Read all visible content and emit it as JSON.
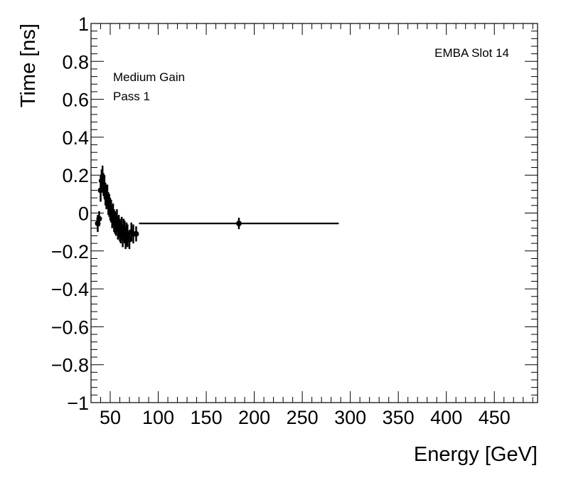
{
  "chart_data": {
    "type": "scatter",
    "title": "",
    "xlabel": "Energy [GeV]",
    "ylabel": "Time [ns]",
    "xlim": [
      30,
      495
    ],
    "ylim": [
      -1,
      1
    ],
    "x_ticks": [
      50,
      100,
      150,
      200,
      250,
      300,
      350,
      400,
      450
    ],
    "x_tick_labels": [
      "50",
      "100",
      "150",
      "200",
      "250",
      "300",
      "350",
      "400",
      "450"
    ],
    "y_ticks": [
      -1,
      -0.8,
      -0.6,
      -0.4,
      -0.2,
      0,
      0.2,
      0.4,
      0.6,
      0.8,
      1
    ],
    "y_tick_labels": [
      "−1",
      "−0.8",
      "−0.6",
      "−0.4",
      "−0.2",
      "0",
      "0.2",
      "0.4",
      "0.6",
      "0.8",
      "1"
    ],
    "grid": false,
    "annotations": [
      "EMBA Slot 14",
      "Medium Gain",
      "Pass 1"
    ],
    "points": [
      {
        "x": 37.0,
        "y": -0.055,
        "err": 0.045,
        "xerr": 2
      },
      {
        "x": 38.5,
        "y": -0.03,
        "err": 0.04,
        "xerr": 2
      },
      {
        "x": 40.0,
        "y": 0.12,
        "err": 0.06,
        "xerr": 1
      },
      {
        "x": 41.0,
        "y": 0.17,
        "err": 0.06,
        "xerr": 1
      },
      {
        "x": 42.0,
        "y": 0.19,
        "err": 0.06,
        "xerr": 1
      },
      {
        "x": 43.0,
        "y": 0.15,
        "err": 0.06,
        "xerr": 1
      },
      {
        "x": 44.0,
        "y": 0.14,
        "err": 0.06,
        "xerr": 1
      },
      {
        "x": 45.0,
        "y": 0.1,
        "err": 0.06,
        "xerr": 1
      },
      {
        "x": 46.0,
        "y": 0.08,
        "err": 0.06,
        "xerr": 1
      },
      {
        "x": 47.0,
        "y": 0.09,
        "err": 0.06,
        "xerr": 1
      },
      {
        "x": 48.0,
        "y": 0.05,
        "err": 0.06,
        "xerr": 1
      },
      {
        "x": 49.0,
        "y": 0.04,
        "err": 0.06,
        "xerr": 1
      },
      {
        "x": 50.0,
        "y": 0.02,
        "err": 0.06,
        "xerr": 1
      },
      {
        "x": 51.0,
        "y": 0.01,
        "err": 0.06,
        "xerr": 1
      },
      {
        "x": 52.0,
        "y": -0.02,
        "err": 0.06,
        "xerr": 1
      },
      {
        "x": 53.0,
        "y": -0.01,
        "err": 0.06,
        "xerr": 1
      },
      {
        "x": 54.0,
        "y": -0.04,
        "err": 0.06,
        "xerr": 1
      },
      {
        "x": 55.0,
        "y": -0.05,
        "err": 0.06,
        "xerr": 1
      },
      {
        "x": 56.0,
        "y": -0.06,
        "err": 0.06,
        "xerr": 1
      },
      {
        "x": 57.0,
        "y": -0.04,
        "err": 0.06,
        "xerr": 1
      },
      {
        "x": 58.0,
        "y": -0.08,
        "err": 0.06,
        "xerr": 1
      },
      {
        "x": 59.0,
        "y": -0.07,
        "err": 0.06,
        "xerr": 1
      },
      {
        "x": 60.0,
        "y": -0.09,
        "err": 0.06,
        "xerr": 1
      },
      {
        "x": 61.0,
        "y": -0.1,
        "err": 0.06,
        "xerr": 1
      },
      {
        "x": 62.0,
        "y": -0.08,
        "err": 0.06,
        "xerr": 1
      },
      {
        "x": 63.0,
        "y": -0.12,
        "err": 0.06,
        "xerr": 1
      },
      {
        "x": 64.0,
        "y": -0.09,
        "err": 0.06,
        "xerr": 1
      },
      {
        "x": 65.0,
        "y": -0.1,
        "err": 0.06,
        "xerr": 1
      },
      {
        "x": 66.0,
        "y": -0.13,
        "err": 0.06,
        "xerr": 1
      },
      {
        "x": 67.0,
        "y": -0.11,
        "err": 0.06,
        "xerr": 1
      },
      {
        "x": 68.0,
        "y": -0.12,
        "err": 0.06,
        "xerr": 1
      },
      {
        "x": 70.0,
        "y": -0.14,
        "err": 0.05,
        "xerr": 1
      },
      {
        "x": 72.0,
        "y": -0.1,
        "err": 0.05,
        "xerr": 1
      },
      {
        "x": 74.0,
        "y": -0.11,
        "err": 0.05,
        "xerr": 1
      },
      {
        "x": 77.0,
        "y": -0.11,
        "err": 0.04,
        "xerr": 2
      },
      {
        "x": 184.0,
        "y": -0.055,
        "err": 0.03,
        "xerr": 104
      }
    ]
  }
}
